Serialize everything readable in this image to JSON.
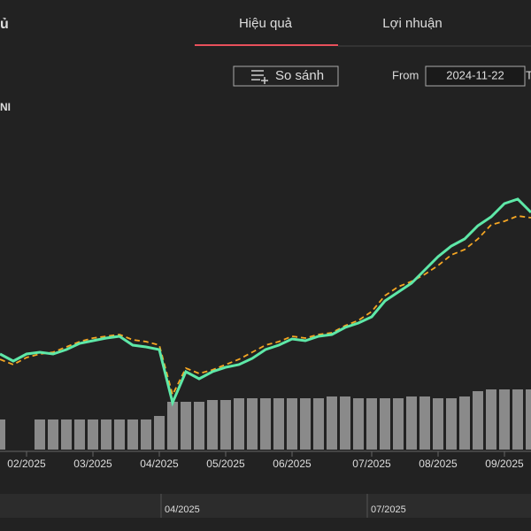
{
  "header": {
    "title": "ủ",
    "tabs": [
      "Hiệu quả",
      "Lợi nhuận"
    ],
    "compare_button": "So sánh",
    "from_label": "From",
    "from_value": "2024-11-22",
    "to_label": "T"
  },
  "chart_data": {
    "type": "line",
    "legend_label": "NI",
    "categories": [
      null,
      null,
      "02/2025",
      null,
      null,
      null,
      null,
      "03/2025",
      null,
      null,
      null,
      null,
      "04/2025",
      null,
      null,
      null,
      null,
      "05/2025",
      null,
      null,
      null,
      null,
      "06/2025",
      null,
      null,
      null,
      null,
      null,
      "07/2025",
      null,
      null,
      null,
      null,
      "08/2025",
      null,
      null,
      null,
      null,
      "09/2025",
      null,
      null
    ],
    "ylim": [
      0,
      100
    ],
    "y2lim": [
      0,
      100
    ],
    "series": [
      {
        "color": "#5ee8a8",
        "values": [
          27.5,
          25.5,
          27.5,
          28,
          27.5,
          28.75,
          30.5,
          31.25,
          32,
          32.5,
          30,
          29.5,
          28.75,
          13.75,
          22.5,
          20.5,
          22.5,
          23.75,
          24.5,
          26.25,
          28.75,
          30,
          31.75,
          31.25,
          32.5,
          33,
          35,
          36.25,
          38,
          42.5,
          45,
          47.5,
          51.25,
          55,
          58,
          60,
          63.75,
          66.25,
          70,
          71.25,
          67.5
        ]
      },
      {
        "color": "#f5a623",
        "values": [
          26,
          24.5,
          26.5,
          27.5,
          28,
          29.5,
          31,
          32,
          32.5,
          33,
          31.5,
          31,
          30,
          16,
          23.5,
          22,
          23,
          24.5,
          26,
          28,
          30,
          31,
          32.5,
          32,
          33,
          33.5,
          35.5,
          37,
          39.5,
          44,
          46.5,
          48,
          50,
          52.5,
          55.5,
          57,
          60,
          64,
          65,
          66.5,
          66
        ]
      },
      {
        "color": "#8a8a8a",
        "axis": "y2",
        "values": [
          8.5,
          null,
          null,
          8.5,
          8.5,
          8.5,
          8.5,
          8.5,
          8.5,
          8.5,
          8.5,
          8.5,
          9.5,
          13.5,
          13.5,
          13.5,
          14,
          14,
          14.5,
          14.5,
          14.5,
          14.5,
          14.5,
          14.5,
          14.5,
          15,
          15,
          14.5,
          14.5,
          14.5,
          14.5,
          15,
          15,
          14.5,
          14.5,
          15,
          16.5,
          17,
          17,
          17,
          17
        ]
      }
    ],
    "navigator_labels": [
      "04/2025",
      "07/2025"
    ]
  }
}
